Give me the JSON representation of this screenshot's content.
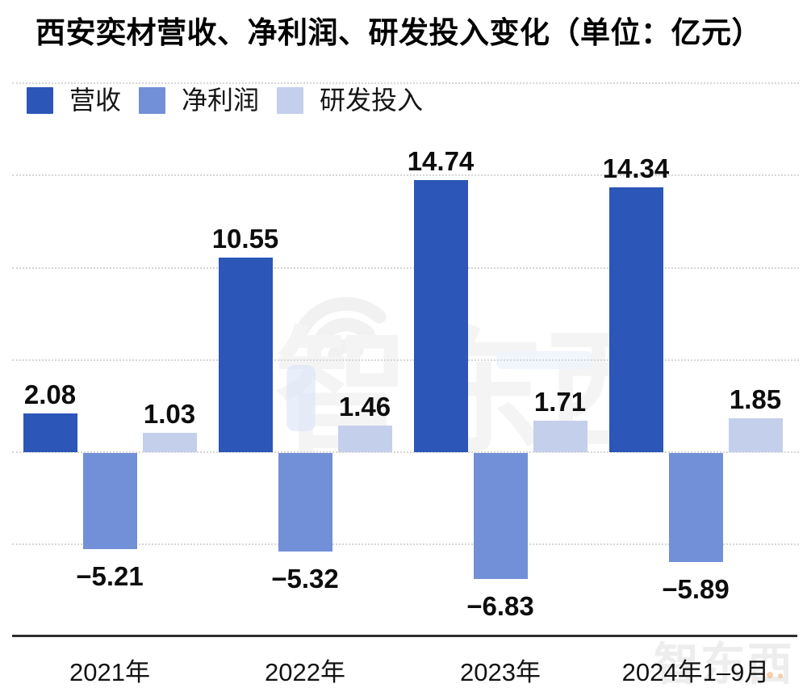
{
  "title": "西安奕材营收、净利润、研发投入变化（单位：亿元）",
  "chart_data": {
    "type": "bar",
    "categories": [
      "2021年",
      "2022年",
      "2023年",
      "2024年1–9月"
    ],
    "series": [
      {
        "name": "营收",
        "color": "#2C56B7",
        "values": [
          2.08,
          10.55,
          14.74,
          14.34
        ]
      },
      {
        "name": "净利润",
        "color": "#7290D7",
        "values": [
          -5.21,
          -5.32,
          -6.83,
          -5.89
        ]
      },
      {
        "name": "研发投入",
        "color": "#C4CFEB",
        "values": [
          1.03,
          1.46,
          1.71,
          1.85
        ]
      }
    ],
    "title": "西安奕材营收、净利润、研发投入变化（单位：亿元）",
    "xlabel": "",
    "ylabel": "",
    "unit": "亿元",
    "ylim": [
      -8.5,
      20
    ],
    "grid_values": [
      20,
      15,
      10,
      5,
      0,
      -5
    ],
    "grid": "horizontal-dotted",
    "legend_position": "top-left",
    "value_labels": "every-bar"
  },
  "watermark": {
    "center_text": "智东西",
    "corner_text": "智东西",
    "center_icon": "wifi-arcs-icon"
  },
  "colors": {
    "background": "#ffffff",
    "axis": "#2e2e2e",
    "gridline": "#d6d6d6",
    "text": "#0d0d0d",
    "watermark_gray": "#f3f3f3",
    "watermark_blue": "#dbe5f6"
  }
}
